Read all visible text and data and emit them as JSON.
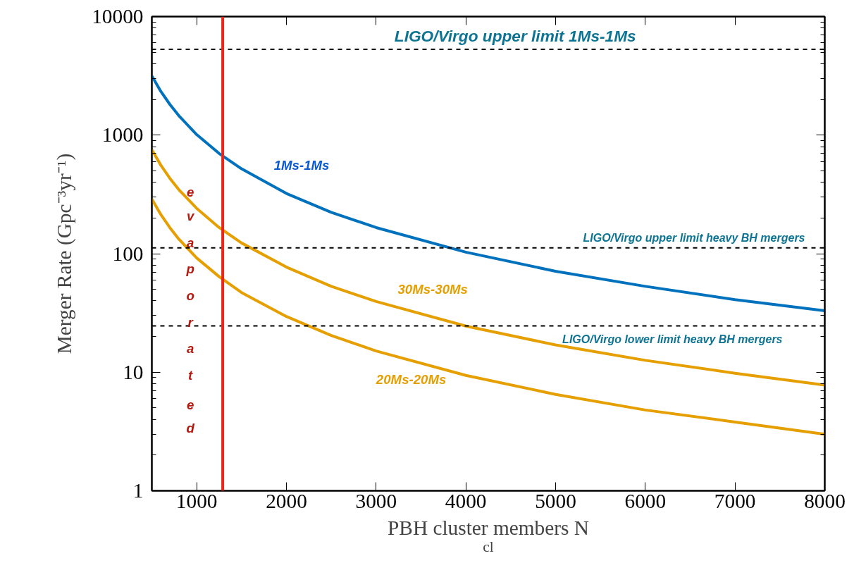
{
  "chart_data": {
    "type": "line",
    "xlabel": "PBH cluster members N$_{cl}$",
    "ylabel": "Merger Rate (Gpc⁻³yr⁻¹)",
    "x": [
      500,
      600,
      700,
      800,
      1000,
      1250,
      1500,
      2000,
      2500,
      3000,
      4000,
      5000,
      6000,
      7000,
      8000
    ],
    "series": [
      {
        "name": "1Ms-1Ms",
        "color": "#0072bd",
        "values": [
          3160,
          2340,
          1820,
          1460,
          1010,
          700,
          520,
          322,
          223,
          166,
          103,
          71,
          53,
          41,
          33
        ]
      },
      {
        "name": "30Ms-30Ms",
        "color": "#e69f00",
        "values": [
          753,
          558,
          433,
          347,
          241,
          166,
          123,
          77,
          53,
          39.5,
          24.5,
          17,
          12.6,
          9.8,
          7.8
        ]
      },
      {
        "name": "20Ms-20Ms",
        "color": "#e69f00",
        "values": [
          289,
          214,
          166,
          133,
          92,
          64,
          47,
          29.5,
          20.4,
          15.1,
          9.4,
          6.5,
          4.8,
          3.8,
          3.0
        ]
      }
    ],
    "log": "y",
    "xlim": [
      500,
      8000
    ],
    "xticks": [
      1000,
      2000,
      3000,
      4000,
      5000,
      6000,
      7000,
      8000
    ],
    "ylim": [
      1,
      10000
    ],
    "yticks": [
      1,
      10,
      100,
      1000,
      10000
    ],
    "ref_lines": [
      {
        "axis": "y",
        "value": 5300,
        "label": "LIGO/Virgo upper limit 1Ms-1Ms",
        "color": "#000000",
        "line_style": "dashed"
      },
      {
        "axis": "y",
        "value": 112,
        "label": "LIGO/Virgo upper limit heavy BH mergers",
        "color": "#000000",
        "line_style": "dashed"
      },
      {
        "axis": "y",
        "value": 24.6,
        "label": "LIGO/Virgo lower limit heavy BH mergers",
        "color": "#000000",
        "line_style": "dashed"
      },
      {
        "axis": "x",
        "value": 1290,
        "label": "evaporated",
        "color": "#e8281a",
        "line_style": "solid"
      }
    ],
    "grid": false,
    "line_style": "solid",
    "marker": "none"
  }
}
